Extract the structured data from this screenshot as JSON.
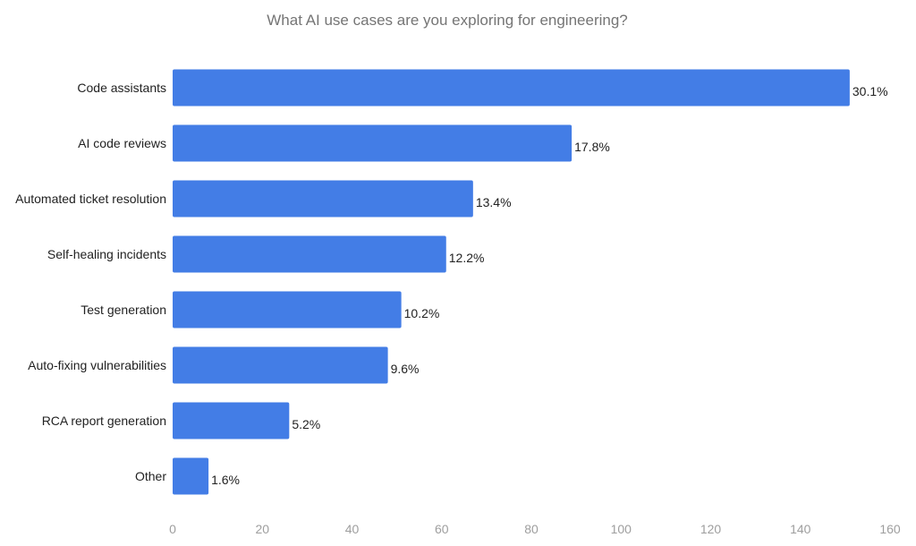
{
  "chart_data": {
    "type": "bar",
    "orientation": "horizontal",
    "title": "What AI use cases are you exploring for engineering?",
    "xlabel": "",
    "ylabel": "",
    "categories": [
      "Code assistants",
      "AI code reviews",
      "Automated ticket resolution",
      "Self-healing incidents",
      "Test generation",
      "Auto-fixing vulnerabilities",
      "RCA report generation",
      "Other"
    ],
    "values": [
      151,
      89,
      67,
      61,
      51,
      48,
      26,
      8
    ],
    "data_labels": [
      "30.1%",
      "17.8%",
      "13.4%",
      "12.2%",
      "10.2%",
      "9.6%",
      "5.2%",
      "1.6%"
    ],
    "xlim": [
      0,
      160
    ],
    "x_ticks": [
      "0",
      "20",
      "40",
      "60",
      "80",
      "100",
      "120",
      "140",
      "160"
    ],
    "grid": false,
    "legend": "none",
    "bar_color": "#437de6"
  }
}
